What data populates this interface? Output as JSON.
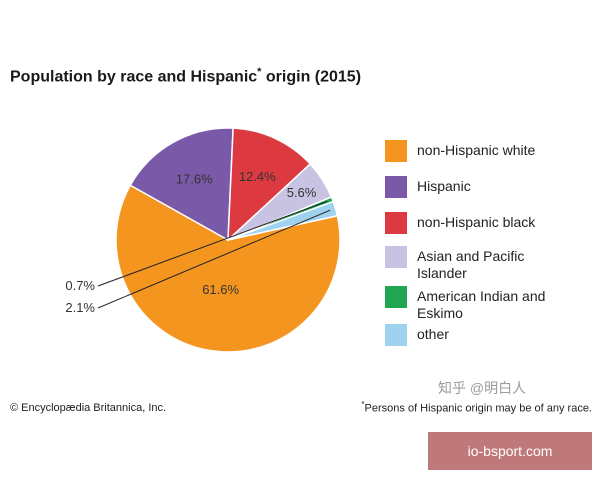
{
  "title": "Population by race and Hispanic",
  "title_mark": "*",
  "title_suffix": " origin (2015)",
  "chart_data": {
    "type": "pie",
    "title": "Population by race and Hispanic* origin (2015)",
    "slices": [
      {
        "name": "non-Hispanic white",
        "value": 61.6,
        "label": "61.6%",
        "color": "#f3951f"
      },
      {
        "name": "Hispanic",
        "value": 17.6,
        "label": "17.6%",
        "color": "#7a5aa8"
      },
      {
        "name": "non-Hispanic black",
        "value": 12.4,
        "label": "12.4%",
        "color": "#dc3a40"
      },
      {
        "name": "Asian and Pacific Islander",
        "value": 5.6,
        "label": "5.6%",
        "color": "#c8c3e2"
      },
      {
        "name": "American Indian and Eskimo",
        "value": 0.7,
        "label": "0.7%",
        "color": "#20a650"
      },
      {
        "name": "other",
        "value": 2.1,
        "label": "2.1%",
        "color": "#9fd2ef"
      }
    ],
    "legend_position": "right"
  },
  "legend": [
    {
      "label": "non-Hispanic white",
      "color": "#f3951f"
    },
    {
      "label": "Hispanic",
      "color": "#7a5aa8"
    },
    {
      "label": "non-Hispanic black",
      "color": "#dc3a40"
    },
    {
      "label": "Asian and Pacific Islander",
      "color": "#c8c3e2"
    },
    {
      "label": "American Indian and Eskimo",
      "color": "#20a650"
    },
    {
      "label": "other",
      "color": "#9fd2ef"
    }
  ],
  "copyright": "© Encyclopædia Britannica, Inc.",
  "footnote_mark": "*",
  "footnote": "Persons of Hispanic origin may be of any race.",
  "watermark": "知乎 @明白人",
  "banner": "io-bsport.com"
}
